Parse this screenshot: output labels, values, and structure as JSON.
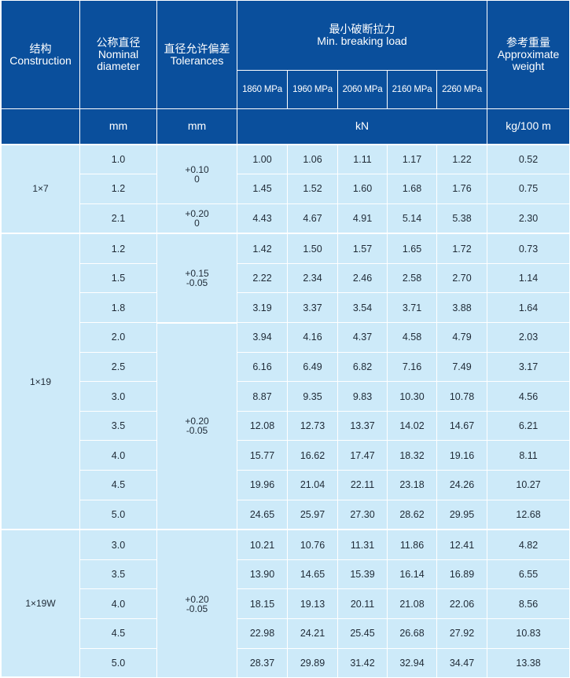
{
  "header": {
    "construction": {
      "zh": "结构",
      "en": "Construction"
    },
    "diameter": {
      "zh": "公称直径",
      "en1": "Nominal",
      "en2": "diameter"
    },
    "tolerance": {
      "zh": "直径允许偏差",
      "en": "Tolerances"
    },
    "load": {
      "zh": "最小破断拉力",
      "en": "Min. breaking load"
    },
    "grades": [
      "1860 MPa",
      "1960 MPa",
      "2060 MPa",
      "2160 MPa",
      "2260 MPa"
    ],
    "weight": {
      "zh": "参考重量",
      "en1": "Approximate",
      "en2": "weight"
    },
    "units": {
      "diameter": "mm",
      "tolerance": "mm",
      "load": "kN",
      "weight": "kg/100 m"
    }
  },
  "groups": [
    {
      "construction": "1×7",
      "tolerances": [
        {
          "plus": "+0.10",
          "minus": "0"
        },
        {
          "plus": "+0.20",
          "minus": "0"
        }
      ],
      "rows": [
        {
          "d": "1.0",
          "loads": [
            "1.00",
            "1.06",
            "1.11",
            "1.17",
            "1.22"
          ],
          "w": "0.52"
        },
        {
          "d": "1.2",
          "loads": [
            "1.45",
            "1.52",
            "1.60",
            "1.68",
            "1.76"
          ],
          "w": "0.75"
        },
        {
          "d": "2.1",
          "loads": [
            "4.43",
            "4.67",
            "4.91",
            "5.14",
            "5.38"
          ],
          "w": "2.30"
        }
      ]
    },
    {
      "construction": "1×19",
      "tolerances": [
        {
          "plus": "+0.15",
          "minus": "-0.05"
        },
        {
          "plus": "+0.20",
          "minus": "-0.05"
        }
      ],
      "rows": [
        {
          "d": "1.2",
          "loads": [
            "1.42",
            "1.50",
            "1.57",
            "1.65",
            "1.72"
          ],
          "w": "0.73"
        },
        {
          "d": "1.5",
          "loads": [
            "2.22",
            "2.34",
            "2.46",
            "2.58",
            "2.70"
          ],
          "w": "1.14"
        },
        {
          "d": "1.8",
          "loads": [
            "3.19",
            "3.37",
            "3.54",
            "3.71",
            "3.88"
          ],
          "w": "1.64"
        },
        {
          "d": "2.0",
          "loads": [
            "3.94",
            "4.16",
            "4.37",
            "4.58",
            "4.79"
          ],
          "w": "2.03"
        },
        {
          "d": "2.5",
          "loads": [
            "6.16",
            "6.49",
            "6.82",
            "7.16",
            "7.49"
          ],
          "w": "3.17"
        },
        {
          "d": "3.0",
          "loads": [
            "8.87",
            "9.35",
            "9.83",
            "10.30",
            "10.78"
          ],
          "w": "4.56"
        },
        {
          "d": "3.5",
          "loads": [
            "12.08",
            "12.73",
            "13.37",
            "14.02",
            "14.67"
          ],
          "w": "6.21"
        },
        {
          "d": "4.0",
          "loads": [
            "15.77",
            "16.62",
            "17.47",
            "18.32",
            "19.16"
          ],
          "w": "8.11"
        },
        {
          "d": "4.5",
          "loads": [
            "19.96",
            "21.04",
            "22.11",
            "23.18",
            "24.26"
          ],
          "w": "10.27"
        },
        {
          "d": "5.0",
          "loads": [
            "24.65",
            "25.97",
            "27.30",
            "28.62",
            "29.95"
          ],
          "w": "12.68"
        }
      ]
    },
    {
      "construction": "1×19W",
      "tolerances": [
        {
          "plus": "+0.20",
          "minus": "-0.05"
        }
      ],
      "rows": [
        {
          "d": "3.0",
          "loads": [
            "10.21",
            "10.76",
            "11.31",
            "11.86",
            "12.41"
          ],
          "w": "4.82"
        },
        {
          "d": "3.5",
          "loads": [
            "13.90",
            "14.65",
            "15.39",
            "16.14",
            "16.89"
          ],
          "w": "6.55"
        },
        {
          "d": "4.0",
          "loads": [
            "18.15",
            "19.13",
            "20.11",
            "21.08",
            "22.06"
          ],
          "w": "8.56"
        },
        {
          "d": "4.5",
          "loads": [
            "22.98",
            "24.21",
            "25.45",
            "26.68",
            "27.92"
          ],
          "w": "10.83"
        },
        {
          "d": "5.0",
          "loads": [
            "28.37",
            "29.89",
            "31.42",
            "32.94",
            "34.47"
          ],
          "w": "13.38"
        }
      ]
    }
  ]
}
